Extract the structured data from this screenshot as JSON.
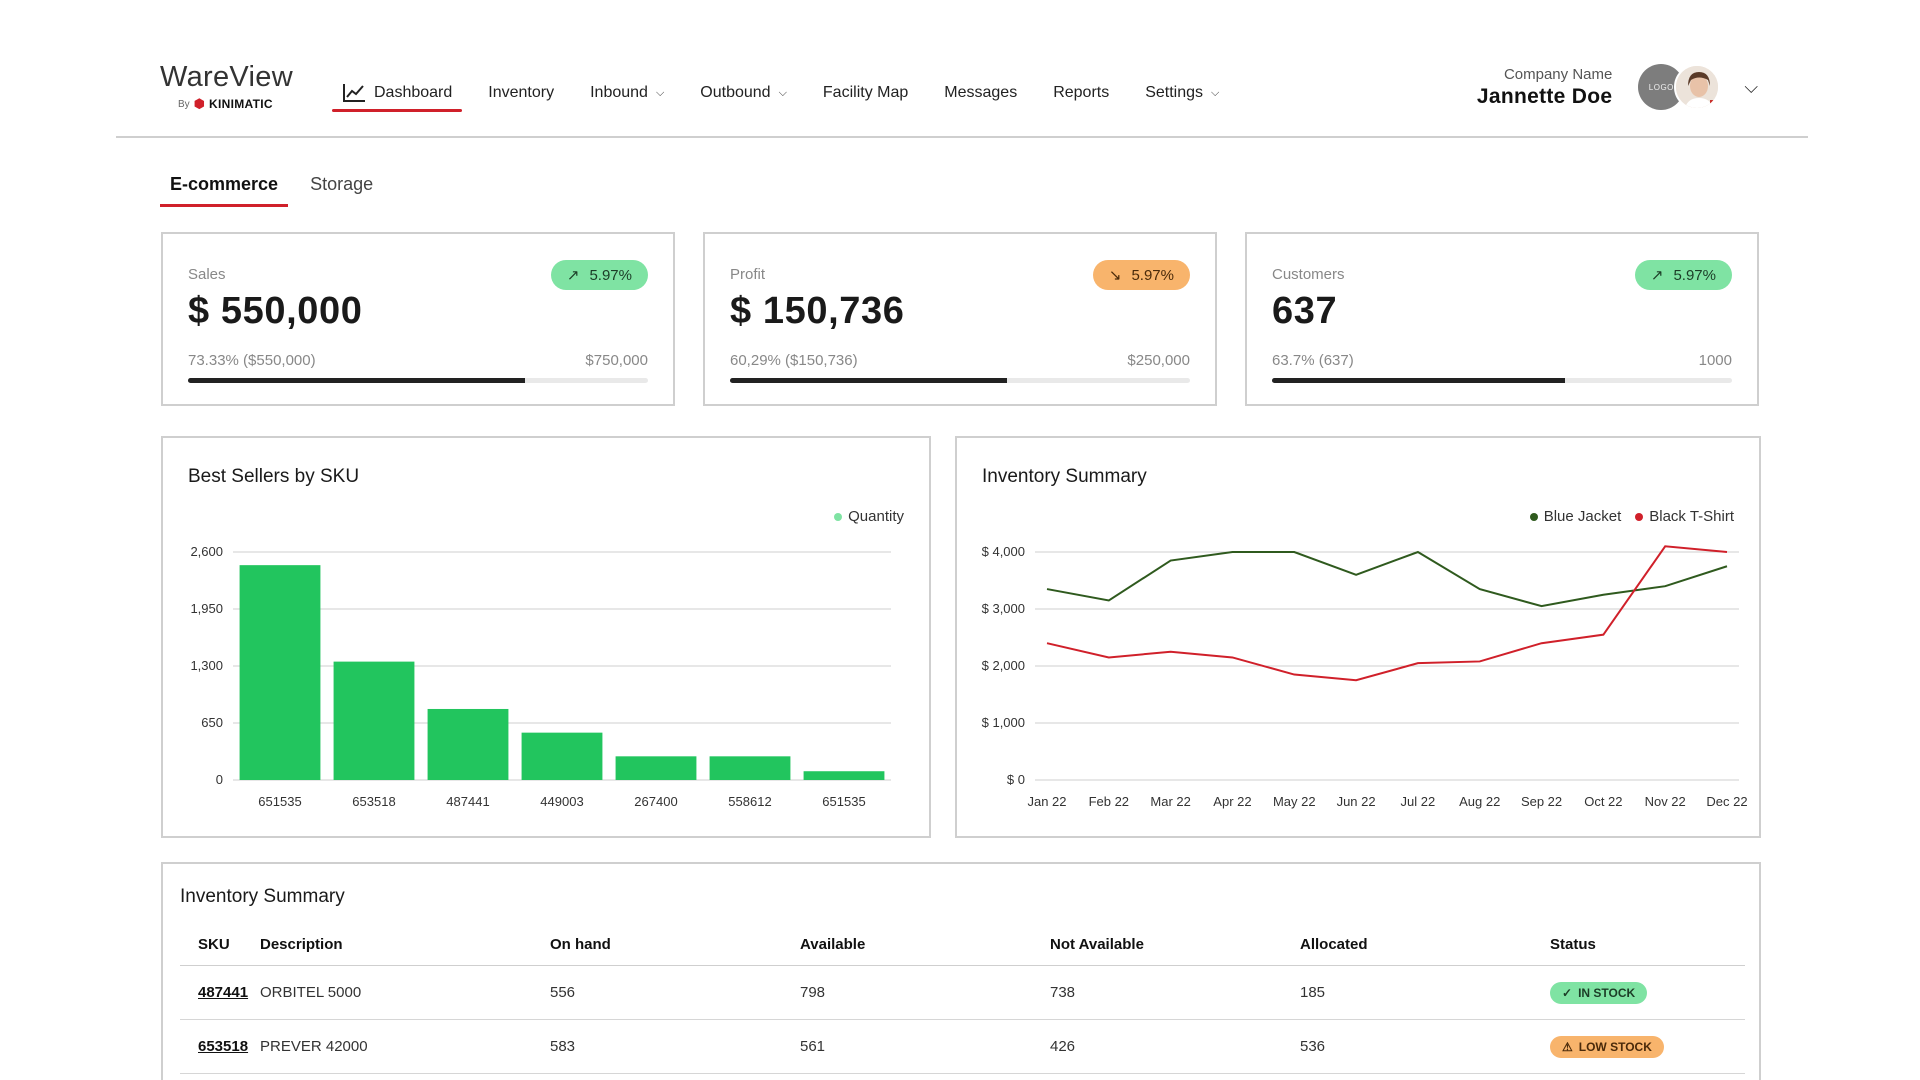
{
  "app": {
    "title": "WareView",
    "by": "By",
    "brand": "KINIMATIC"
  },
  "nav": {
    "items": [
      {
        "label": "Dashboard",
        "active": true,
        "icon": "line-chart-icon"
      },
      {
        "label": "Inventory"
      },
      {
        "label": "Inbound",
        "dropdown": true
      },
      {
        "label": "Outbound",
        "dropdown": true
      },
      {
        "label": "Facility Map"
      },
      {
        "label": "Messages"
      },
      {
        "label": "Reports"
      },
      {
        "label": "Settings",
        "dropdown": true
      }
    ]
  },
  "user": {
    "company": "Company Name",
    "name": "Jannette Doe",
    "logo_text": "LOGO"
  },
  "tabs": [
    "E-commerce",
    "Storage"
  ],
  "kpis": [
    {
      "label": "Sales",
      "value": "$ 550,000",
      "badge": "5.97%",
      "trend": "up",
      "foot_left": "73.33% ($550,000)",
      "foot_right": "$750,000",
      "progress": 0.7333
    },
    {
      "label": "Profit",
      "value": "$ 150,736",
      "badge": "5.97%",
      "trend": "down",
      "foot_left": "60,29% ($150,736)",
      "foot_right": "$250,000",
      "progress": 0.6029
    },
    {
      "label": "Customers",
      "value": "637",
      "badge": "5.97%",
      "trend": "up",
      "foot_left": "63.7% (637)",
      "foot_right": "1000",
      "progress": 0.637
    }
  ],
  "chart_data": [
    {
      "type": "bar",
      "title": "Best Sellers by SKU",
      "categories": [
        "651535",
        "653518",
        "487441",
        "449003",
        "267400",
        "558612",
        "651535"
      ],
      "series": [
        {
          "name": "Quantity",
          "values": [
            2450,
            1350,
            810,
            540,
            270,
            270,
            100
          ],
          "color": "#22c55e"
        }
      ],
      "y_ticks": [
        "2,600",
        "1,950",
        "1,300",
        "650",
        "0"
      ],
      "ylim": [
        0,
        2600
      ],
      "grid": true,
      "legend": "top-right"
    },
    {
      "type": "line",
      "title": "Inventory Summary",
      "categories": [
        "Jan 22",
        "Feb 22",
        "Mar 22",
        "Apr 22",
        "May 22",
        "Jun 22",
        "Jul 22",
        "Aug 22",
        "Sep 22",
        "Oct 22",
        "Nov 22",
        "Dec 22"
      ],
      "series": [
        {
          "name": "Blue Jacket",
          "color": "#2f5a1e",
          "values": [
            3350,
            3150,
            3850,
            4000,
            4000,
            3600,
            4000,
            3350,
            3050,
            3250,
            3400,
            3750
          ]
        },
        {
          "name": "Black T-Shirt",
          "color": "#d0202a",
          "values": [
            2400,
            2150,
            2250,
            2150,
            1850,
            1750,
            2050,
            2080,
            2400,
            2550,
            4100,
            4000
          ]
        }
      ],
      "y_ticks": [
        "$ 4,000",
        "$ 3,000",
        "$ 2,000",
        "$ 1,000",
        "$ 0"
      ],
      "ylim": [
        0,
        4000
      ],
      "grid": true,
      "legend": "top-right"
    }
  ],
  "table": {
    "title": "Inventory Summary",
    "headers": [
      "SKU",
      "Description",
      "On hand",
      "Available",
      "Not Available",
      "Allocated",
      "Status"
    ],
    "rows": [
      {
        "sku": "487441",
        "description": "ORBITEL 5000",
        "on_hand": "556",
        "available": "798",
        "not_available": "738",
        "allocated": "185",
        "status": "IN STOCK",
        "status_type": "in"
      },
      {
        "sku": "653518",
        "description": "PREVER 42000",
        "on_hand": "583",
        "available": "561",
        "not_available": "426",
        "allocated": "536",
        "status": "LOW STOCK",
        "status_type": "low"
      }
    ]
  }
}
